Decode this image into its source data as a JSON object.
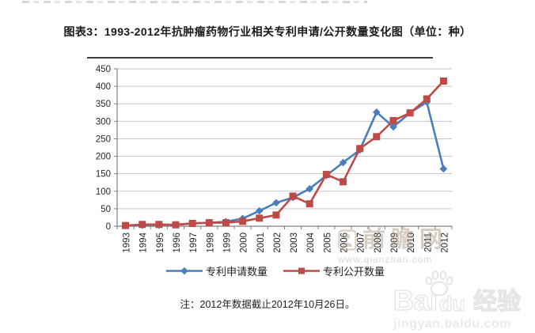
{
  "header": {
    "title": "图表3：1993-2012年抗肿瘤药物行业相关专利申请/公开数量变化图（单位：种）"
  },
  "footer": {
    "note": "注：2012年数据截止2012年10月26日。"
  },
  "watermarks": {
    "qianzhan": {
      "name": "前瞻网",
      "chars": [
        "前",
        "瞻",
        "网"
      ],
      "url": "www.qianzhan.com",
      "color": "#b09c88"
    },
    "baidu": {
      "brand_bai": "Bai",
      "brand_du": "du",
      "suffix": "经验",
      "url": "jingyan.baidu.com",
      "paw_icon": "paw-icon"
    }
  },
  "chart_data": {
    "type": "line",
    "title": "图表3：1993-2012年抗肿瘤药物行业相关专利申请/公开数量变化图（单位：种）",
    "categories": [
      "1993",
      "1994",
      "1995",
      "1996",
      "1997",
      "1998",
      "1999",
      "2000",
      "2001",
      "2002",
      "2003",
      "2004",
      "2005",
      "2006",
      "2007",
      "2008",
      "2009",
      "2010",
      "2011",
      "2012"
    ],
    "series": [
      {
        "name": "专利申请数量",
        "marker": "diamond",
        "color": "#4a7ebb",
        "values": [
          2,
          3,
          3,
          4,
          8,
          10,
          13,
          22,
          44,
          67,
          82,
          107,
          145,
          182,
          218,
          326,
          284,
          324,
          355,
          164
        ]
      },
      {
        "name": "专利公开数量",
        "marker": "square",
        "color": "#be4b48",
        "values": [
          2,
          5,
          5,
          4,
          8,
          10,
          10,
          14,
          23,
          32,
          86,
          64,
          148,
          127,
          222,
          256,
          302,
          324,
          364,
          415
        ]
      }
    ],
    "xlabel": "",
    "ylabel": "",
    "ylim": [
      0,
      450
    ],
    "ytick_interval": 50,
    "grid": true,
    "legend_position": "bottom",
    "axis_color": "#7f7f7f",
    "grid_color": "#c6c6c6",
    "tick_label_color": "#262626"
  }
}
